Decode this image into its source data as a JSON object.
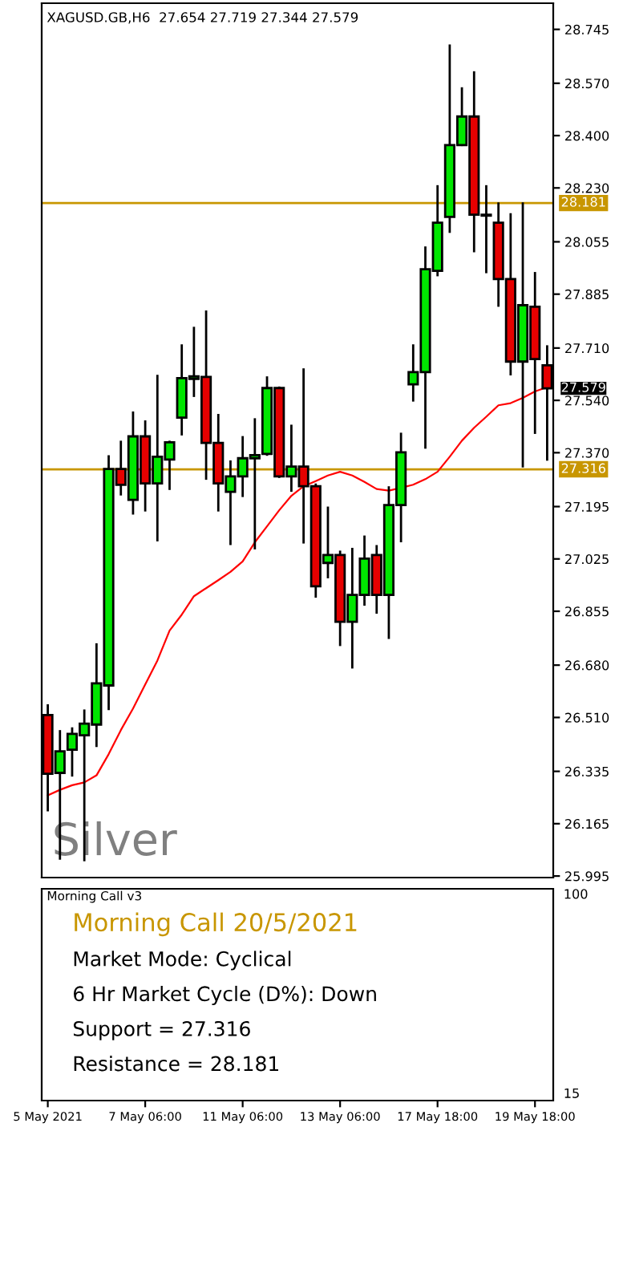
{
  "chart_data": [
    {
      "type": "candlestick",
      "title": "XAGUSD.GB,H6  27.654 27.719 27.344 27.579",
      "categories": [
        null,
        null,
        null,
        null,
        null,
        null,
        null,
        null,
        null,
        null,
        null,
        null,
        null,
        null,
        null,
        null,
        null,
        null,
        null,
        null,
        null,
        null,
        null,
        null,
        null,
        null,
        null,
        null,
        null,
        null,
        null,
        null,
        null,
        null,
        null,
        null,
        null,
        null,
        null,
        null,
        null,
        null
      ],
      "tick_labels": "y",
      "ohlc": [
        [
          26.518,
          26.553,
          26.205,
          26.327
        ],
        [
          26.33,
          26.469,
          26.048,
          26.4
        ],
        [
          26.405,
          26.478,
          26.318,
          26.457
        ],
        [
          26.452,
          26.536,
          26.043,
          26.49
        ],
        [
          26.487,
          26.751,
          26.414,
          26.621
        ],
        [
          26.614,
          27.362,
          26.534,
          27.317
        ],
        [
          27.317,
          27.409,
          27.231,
          27.266
        ],
        [
          27.217,
          27.504,
          27.169,
          27.423
        ],
        [
          27.423,
          27.475,
          27.179,
          27.27
        ],
        [
          27.27,
          27.623,
          27.082,
          27.357
        ],
        [
          27.348,
          27.409,
          27.249,
          27.404
        ],
        [
          27.484,
          27.722,
          27.426,
          27.612
        ],
        [
          27.61,
          27.779,
          27.551,
          27.618
        ],
        [
          27.616,
          27.832,
          27.282,
          27.402
        ],
        [
          27.402,
          27.496,
          27.179,
          27.27
        ],
        [
          27.243,
          27.345,
          27.07,
          27.293
        ],
        [
          27.293,
          27.424,
          27.226,
          27.352
        ],
        [
          27.352,
          27.482,
          27.056,
          27.362
        ],
        [
          27.366,
          27.618,
          27.36,
          27.58
        ],
        [
          27.58,
          27.585,
          27.288,
          27.293
        ],
        [
          27.293,
          27.461,
          27.243,
          27.325
        ],
        [
          27.325,
          27.644,
          27.075,
          27.261
        ],
        [
          27.261,
          27.27,
          26.899,
          26.936
        ],
        [
          27.012,
          27.195,
          26.962,
          27.038
        ],
        [
          27.038,
          27.052,
          26.742,
          26.821
        ],
        [
          26.821,
          27.061,
          26.669,
          26.908
        ],
        [
          26.908,
          27.101,
          26.873,
          27.026
        ],
        [
          27.038,
          27.07,
          26.847,
          26.908
        ],
        [
          26.908,
          27.261,
          26.765,
          27.2
        ],
        [
          27.2,
          27.435,
          27.079,
          27.371
        ],
        [
          27.592,
          27.722,
          27.536,
          27.632
        ],
        [
          27.632,
          28.04,
          27.383,
          27.966
        ],
        [
          27.961,
          28.239,
          27.943,
          28.117
        ],
        [
          28.136,
          28.696,
          28.084,
          28.369
        ],
        [
          28.369,
          28.557,
          28.366,
          28.462
        ],
        [
          28.462,
          28.609,
          28.021,
          28.143
        ],
        [
          28.143,
          28.239,
          27.953,
          28.14
        ],
        [
          28.117,
          28.183,
          27.844,
          27.934
        ],
        [
          27.934,
          28.148,
          27.621,
          27.666
        ],
        [
          27.666,
          28.183,
          27.322,
          27.849
        ],
        [
          27.844,
          27.957,
          27.431,
          27.674
        ],
        [
          27.654,
          27.719,
          27.344,
          27.579
        ]
      ],
      "series": [
        {
          "type": "line",
          "color": "#ff0000",
          "values": [
            26.257,
            26.275,
            26.29,
            26.299,
            26.322,
            26.391,
            26.469,
            26.539,
            26.617,
            26.695,
            26.792,
            26.844,
            26.904,
            26.93,
            26.956,
            26.983,
            27.017,
            27.079,
            27.131,
            27.183,
            27.23,
            27.261,
            27.278,
            27.296,
            27.308,
            27.296,
            27.275,
            27.252,
            27.247,
            27.256,
            27.266,
            27.284,
            27.308,
            27.357,
            27.409,
            27.451,
            27.487,
            27.524,
            27.531,
            27.548,
            27.569,
            27.583
          ]
        }
      ],
      "ylim": [
        25.99,
        28.83
      ],
      "yticks": [
        {
          "value": 28.745,
          "label": "28.745"
        },
        {
          "value": 28.57,
          "label": "28.570"
        },
        {
          "value": 28.4,
          "label": "28.400"
        },
        {
          "value": 28.23,
          "label": "28.230"
        },
        {
          "value": 28.055,
          "label": "28.055"
        },
        {
          "value": 27.885,
          "label": "27.885"
        },
        {
          "value": 27.71,
          "label": "27.710"
        },
        {
          "value": 27.54,
          "label": "27.540"
        },
        {
          "value": 27.37,
          "label": "27.370"
        },
        {
          "value": 27.195,
          "label": "27.195"
        },
        {
          "value": 27.025,
          "label": "27.025"
        },
        {
          "value": 26.855,
          "label": "26.855"
        },
        {
          "value": 26.68,
          "label": "26.680"
        },
        {
          "value": 26.51,
          "label": "26.510"
        },
        {
          "value": 26.335,
          "label": "26.335"
        },
        {
          "value": 26.165,
          "label": "26.165"
        },
        {
          "value": 25.995,
          "label": "25.995"
        }
      ],
      "ref_lines": [
        {
          "axis": "y",
          "value": 28.181,
          "label": "28.181",
          "color": "#c89600"
        },
        {
          "axis": "y",
          "value": 27.316,
          "label": "27.316",
          "color": "#c89600"
        }
      ],
      "annotations": [
        "Silver",
        "27.579"
      ]
    },
    {
      "type": "other",
      "title": "Morning Call v3",
      "categories": [
        "5 May 2021",
        null,
        null,
        null,
        null,
        null,
        null,
        null,
        "7 May 06:00",
        null,
        null,
        null,
        null,
        null,
        null,
        null,
        "11 May 06:00",
        null,
        null,
        null,
        null,
        null,
        null,
        null,
        "13 May 06:00",
        null,
        null,
        null,
        null,
        null,
        null,
        null,
        "17 May 18:00",
        null,
        null,
        null,
        null,
        null,
        null,
        null,
        "19 May 18:00",
        null
      ],
      "annotations": [
        "Morning Call 20/5/2021",
        "Market Mode: Cyclical",
        "6 Hr Market Cycle (D%): Down",
        "Support = 27.316",
        "Resistance = 28.181",
        "100",
        "15"
      ]
    }
  ]
}
